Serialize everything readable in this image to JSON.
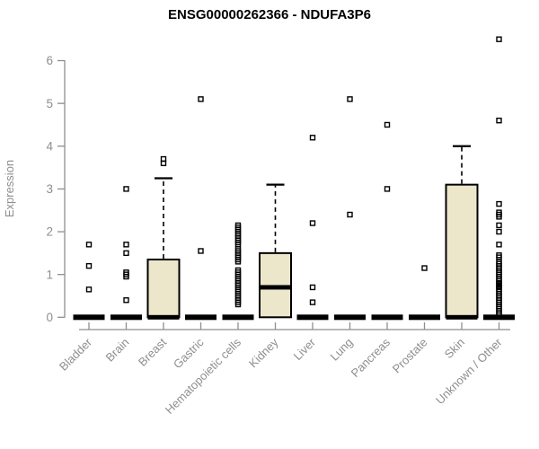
{
  "title": "ENSG00000262366 - NDUFA3P6",
  "colors": {
    "box_fill": "#ece7cb",
    "box_stroke": "#000000",
    "median": "#000000",
    "outlier_stroke": "#000000",
    "axis": "#8e8e8e",
    "title_color": "#000000",
    "background": "#ffffff"
  },
  "chart_data": {
    "type": "boxplot",
    "title": "ENSG00000262366 - NDUFA3P6",
    "xlabel": "",
    "ylabel": "Expression",
    "ylim": [
      0,
      6.6
    ],
    "yticks": [
      0,
      1,
      2,
      3,
      4,
      5,
      6
    ],
    "grid": false,
    "legend": "none",
    "categories": [
      "Bladder",
      "Brain",
      "Breast",
      "Gastric",
      "Hematopoietic cells",
      "Kidney",
      "Liver",
      "Lung",
      "Pancreas",
      "Prostate",
      "Skin",
      "Unknown / Other"
    ],
    "boxes": [
      {
        "category": "Bladder",
        "q1": 0,
        "median": 0,
        "q3": 0,
        "whisker_low": 0,
        "whisker_high": 0,
        "outliers": [
          0.65,
          1.2,
          1.7
        ]
      },
      {
        "category": "Brain",
        "q1": 0,
        "median": 0,
        "q3": 0,
        "whisker_low": 0,
        "whisker_high": 0,
        "outliers": [
          0.4,
          0.95,
          1.0,
          1.05,
          1.5,
          1.7,
          3.0
        ]
      },
      {
        "category": "Breast",
        "q1": 0,
        "median": 0,
        "q3": 1.35,
        "whisker_low": 0,
        "whisker_high": 3.25,
        "outliers": [
          3.6,
          3.7
        ]
      },
      {
        "category": "Gastric",
        "q1": 0,
        "median": 0,
        "q3": 0,
        "whisker_low": 0,
        "whisker_high": 0,
        "outliers": [
          1.55,
          5.1
        ]
      },
      {
        "category": "Hematopoietic cells",
        "q1": 0,
        "median": 0,
        "q3": 0,
        "whisker_low": 0,
        "whisker_high": 0,
        "outliers": [
          0.3,
          0.35,
          0.4,
          0.45,
          0.5,
          0.55,
          0.6,
          0.65,
          0.7,
          0.75,
          0.8,
          0.85,
          0.9,
          0.95,
          1.0,
          1.05,
          1.1,
          1.3,
          1.35,
          1.4,
          1.45,
          1.5,
          1.55,
          1.6,
          1.7,
          1.75,
          1.8,
          1.85,
          1.9,
          1.95,
          2.0,
          2.05,
          2.1,
          2.15
        ]
      },
      {
        "category": "Kidney",
        "q1": 0,
        "median": 0.7,
        "q3": 1.5,
        "whisker_low": 0,
        "whisker_high": 3.1,
        "outliers": []
      },
      {
        "category": "Liver",
        "q1": 0,
        "median": 0,
        "q3": 0,
        "whisker_low": 0,
        "whisker_high": 0,
        "outliers": [
          0.35,
          0.7,
          2.2,
          4.2
        ]
      },
      {
        "category": "Lung",
        "q1": 0,
        "median": 0,
        "q3": 0,
        "whisker_low": 0,
        "whisker_high": 0,
        "outliers": [
          2.4,
          5.1
        ]
      },
      {
        "category": "Pancreas",
        "q1": 0,
        "median": 0,
        "q3": 0,
        "whisker_low": 0,
        "whisker_high": 0,
        "outliers": [
          3.0,
          4.5
        ]
      },
      {
        "category": "Prostate",
        "q1": 0,
        "median": 0,
        "q3": 0,
        "whisker_low": 0,
        "whisker_high": 0,
        "outliers": [
          1.15
        ]
      },
      {
        "category": "Skin",
        "q1": 0,
        "median": 0,
        "q3": 3.1,
        "whisker_low": 0,
        "whisker_high": 4.0,
        "outliers": []
      },
      {
        "category": "Unknown / Other",
        "q1": 0,
        "median": 0,
        "q3": 0,
        "whisker_low": 0,
        "whisker_high": 0,
        "outliers": [
          0.05,
          0.1,
          0.15,
          0.2,
          0.25,
          0.3,
          0.35,
          0.4,
          0.45,
          0.5,
          0.55,
          0.6,
          0.65,
          0.7,
          0.72,
          0.75,
          0.78,
          0.8,
          0.85,
          0.9,
          0.95,
          1.0,
          1.05,
          1.1,
          1.15,
          1.2,
          1.25,
          1.3,
          1.4,
          1.45,
          1.7,
          2.0,
          2.15,
          2.35,
          2.4,
          2.45,
          2.65,
          4.6,
          6.5
        ]
      }
    ]
  }
}
